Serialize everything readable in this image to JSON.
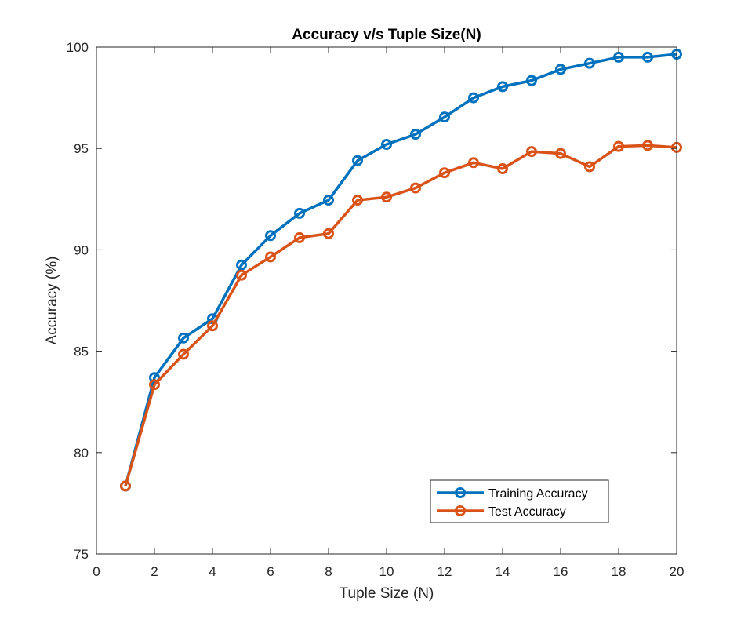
{
  "chart_data": {
    "type": "line",
    "title": "Accuracy v/s Tuple Size(N)",
    "xlabel": "Tuple Size (N)",
    "ylabel": "Accuracy (%)",
    "xlim": [
      0,
      20
    ],
    "ylim": [
      75,
      100
    ],
    "xticks": [
      0,
      2,
      4,
      6,
      8,
      10,
      12,
      14,
      16,
      18,
      20
    ],
    "yticks": [
      75,
      80,
      85,
      90,
      95,
      100
    ],
    "grid": false,
    "legend_position": "bottom-right",
    "x": [
      1,
      2,
      3,
      4,
      5,
      6,
      7,
      8,
      9,
      10,
      11,
      12,
      13,
      14,
      15,
      16,
      17,
      18,
      19,
      20
    ],
    "series": [
      {
        "name": "Training Accuracy",
        "color": "#0072BD",
        "marker": "circle",
        "values": [
          78.35,
          83.7,
          85.65,
          86.6,
          89.25,
          90.7,
          91.8,
          92.45,
          94.4,
          95.2,
          95.7,
          96.55,
          97.5,
          98.05,
          98.35,
          98.9,
          99.2,
          99.5,
          99.5,
          99.65
        ]
      },
      {
        "name": "Test Accuracy",
        "color": "#D95319",
        "marker": "circle",
        "values": [
          78.35,
          83.35,
          84.85,
          86.25,
          88.75,
          89.65,
          90.6,
          90.8,
          92.45,
          92.6,
          93.05,
          93.8,
          94.3,
          94.0,
          94.85,
          94.75,
          94.1,
          95.1,
          95.15,
          95.05
        ]
      }
    ]
  }
}
